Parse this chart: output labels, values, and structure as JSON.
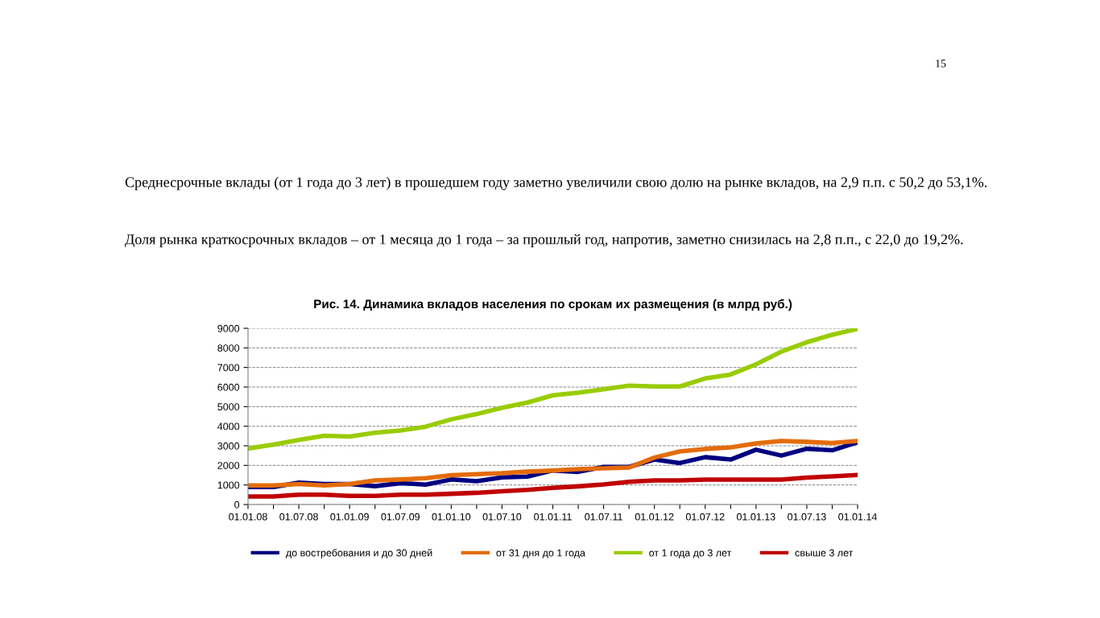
{
  "chart_data": {
    "type": "line",
    "title": "Рис. 14. Динамика вкладов населения по срокам их размещения (в млрд руб.)",
    "annotations": [
      "Среднесрочные вклады (от 1 года до 3 лет) в прошедшем году заметно увеличили свою долю на рынке вкладов, на 2,9 п.п. с 50,2 до 53,1%.",
      "Доля рынка краткосрочных вкладов – от 1 месяца до 1 года – за прошлый год, напротив, заметно снизилась на 2,8 п.п., с 22,0 до 19,2%.",
      "15"
    ],
    "categories": [
      "01.01.08",
      null,
      "01.07.08",
      null,
      "01.01.09",
      null,
      "01.07.09",
      null,
      "01.01.10",
      null,
      "01.07.10",
      null,
      "01.01.11",
      null,
      "01.07.11",
      null,
      "01.01.12",
      null,
      "01.07.12",
      null,
      "01.01.13",
      null,
      "01.07.13",
      null,
      "01.01.14"
    ],
    "ylim": [
      0,
      9000
    ],
    "yticks": [
      0,
      1000,
      2000,
      3000,
      4000,
      5000,
      6000,
      7000,
      8000,
      9000
    ],
    "grid": "y",
    "legend": "bottom",
    "series": [
      {
        "name": "до востребования и до 30 дней",
        "color": "#000080",
        "values": [
          890,
          890,
          1120,
          1050,
          1050,
          940,
          1090,
          1020,
          1280,
          1190,
          1390,
          1430,
          1740,
          1670,
          1920,
          1920,
          2300,
          2120,
          2420,
          2300,
          2800,
          2500,
          2850,
          2770,
          3180
        ]
      },
      {
        "name": "от 31 дня до 1 года",
        "color": "#e46c0a",
        "values": [
          980,
          980,
          1050,
          980,
          1050,
          1230,
          1280,
          1350,
          1500,
          1550,
          1600,
          1680,
          1740,
          1810,
          1850,
          1890,
          2400,
          2710,
          2840,
          2920,
          3120,
          3250,
          3200,
          3140,
          3250
        ]
      },
      {
        "name": "от 1 года до 3 лет",
        "color": "#99cc00",
        "values": [
          2860,
          3060,
          3300,
          3510,
          3470,
          3670,
          3780,
          3980,
          4350,
          4620,
          4940,
          5210,
          5580,
          5710,
          5890,
          6070,
          6030,
          6030,
          6440,
          6640,
          7160,
          7810,
          8290,
          8670,
          8970
        ]
      },
      {
        "name": "свыше 3 лет",
        "color": "#c00000",
        "values": [
          410,
          410,
          500,
          500,
          440,
          440,
          500,
          500,
          550,
          600,
          680,
          750,
          850,
          930,
          1030,
          1160,
          1230,
          1230,
          1270,
          1270,
          1270,
          1270,
          1380,
          1440,
          1510
        ]
      }
    ]
  }
}
